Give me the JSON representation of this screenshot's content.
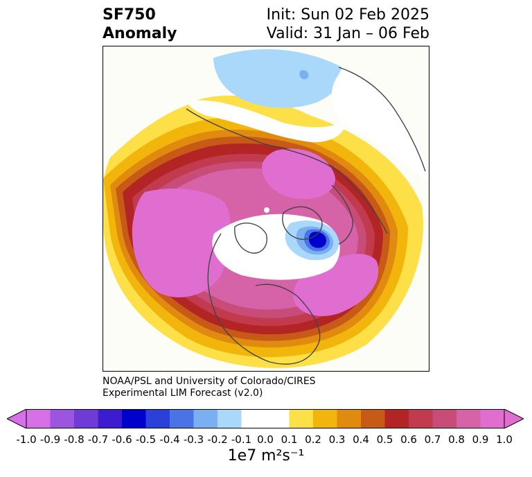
{
  "title": {
    "left_line1": "SF750",
    "left_line2": "Anomaly",
    "right_line1": "Init: Sun 02 Feb 2025",
    "right_line2": "Valid: 31 Jan – 06 Feb"
  },
  "credit": {
    "line1": "NOAA/PSL and University of Colorado/CIRES",
    "line2": "Experimental LIM Forecast (v2.0)"
  },
  "colorbar": {
    "units_label": "1e7 m²s⁻¹",
    "ticks": [
      "-1.0",
      "-0.9",
      "-0.8",
      "-0.7",
      "-0.6",
      "-0.5",
      "-0.4",
      "-0.3",
      "-0.2",
      "-0.1",
      "0.0",
      "0.1",
      "0.2",
      "0.3",
      "0.4",
      "0.5",
      "0.6",
      "0.7",
      "0.8",
      "0.9",
      "1.0"
    ],
    "colors": [
      "#d670e6",
      "#9b55e0",
      "#6e3bd6",
      "#3d1bd0",
      "#0000cc",
      "#2a40d8",
      "#4a73e6",
      "#7ab0f2",
      "#aad8fa",
      "#ffffff",
      "#ffffff",
      "#fde047",
      "#f2b50c",
      "#e08a10",
      "#c85a18",
      "#b32424",
      "#c23a4e",
      "#c84c78",
      "#d662a8",
      "#e06dd0"
    ]
  },
  "map": {
    "projection": "north-polar-stereographic",
    "field_colors": {
      "strong_positive": "#e06dd0",
      "positive_ring": "#b32424",
      "weak_positive": "#fde047",
      "negative": "#aad8fa",
      "strong_negative": "#0000cc"
    }
  }
}
